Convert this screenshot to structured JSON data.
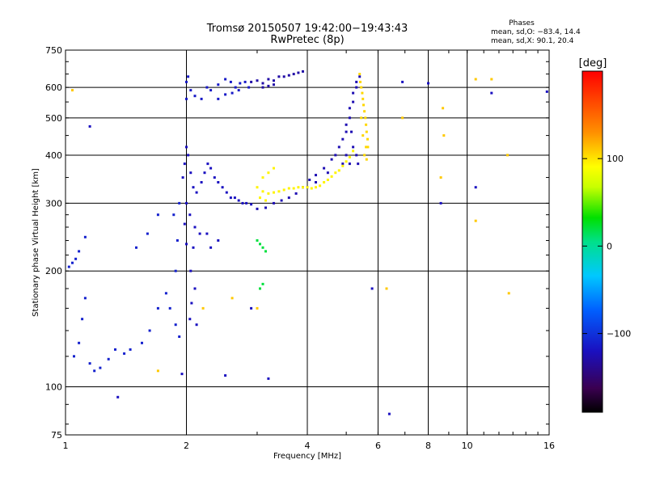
{
  "chart_data": {
    "type": "scatter",
    "title": "Tromsø 20150507 19:42:00−19:43:43",
    "subtitle": "RwPretec (8p)",
    "stats": {
      "heading": "Phases",
      "line1": "mean, sd,O:  −83.4, 14.4",
      "line2": "mean, sd,X:   90.1, 20.4"
    },
    "xlabel": "Frequency [MHz]",
    "ylabel": "Stationary phase Virtual Height [km]",
    "xscale": "log",
    "yscale": "log",
    "xlim": [
      1,
      16
    ],
    "ylim": [
      75,
      750
    ],
    "xticks": [
      1,
      2,
      4,
      6,
      8,
      10,
      16
    ],
    "xtick_labels": [
      "1",
      "2",
      "4",
      "6",
      "8",
      "10",
      "16"
    ],
    "yticks": [
      75,
      100,
      200,
      300,
      400,
      500,
      600,
      750
    ],
    "ytick_labels": [
      "75",
      "100",
      "200",
      "300",
      "400",
      "500",
      "600",
      "750"
    ],
    "grid": true,
    "colorbar": {
      "label": "[deg]",
      "range": [
        -190,
        200
      ],
      "ticks": [
        100,
        0,
        -100
      ],
      "tick_labels": [
        "100",
        "0",
        "−100"
      ]
    },
    "series": [
      {
        "color_value": -110,
        "points": [
          [
            1.02,
            205
          ],
          [
            1.04,
            210
          ],
          [
            1.06,
            215
          ],
          [
            1.08,
            225
          ],
          [
            1.12,
            245
          ],
          [
            1.05,
            120
          ],
          [
            1.08,
            130
          ],
          [
            1.1,
            150
          ],
          [
            1.12,
            170
          ],
          [
            1.15,
            115
          ],
          [
            1.18,
            110
          ],
          [
            1.22,
            112
          ],
          [
            1.28,
            118
          ],
          [
            1.33,
            125
          ],
          [
            1.4,
            122
          ],
          [
            1.45,
            125
          ],
          [
            1.55,
            130
          ],
          [
            1.62,
            140
          ],
          [
            1.7,
            160
          ],
          [
            1.78,
            175
          ],
          [
            1.82,
            160
          ],
          [
            1.88,
            145
          ],
          [
            1.92,
            135
          ],
          [
            1.88,
            200
          ],
          [
            1.9,
            240
          ],
          [
            1.86,
            280
          ],
          [
            1.92,
            300
          ],
          [
            1.7,
            280
          ],
          [
            1.6,
            250
          ],
          [
            1.5,
            230
          ]
        ]
      },
      {
        "color_value": -120,
        "points": [
          [
            1.96,
            350
          ],
          [
            1.98,
            380
          ],
          [
            2.0,
            420
          ],
          [
            2.02,
            400
          ],
          [
            2.05,
            360
          ],
          [
            2.08,
            330
          ],
          [
            2.12,
            320
          ],
          [
            2.18,
            340
          ],
          [
            2.22,
            360
          ],
          [
            2.26,
            380
          ],
          [
            2.3,
            370
          ],
          [
            2.35,
            350
          ],
          [
            2.4,
            340
          ],
          [
            2.46,
            330
          ],
          [
            2.52,
            320
          ],
          [
            2.58,
            310
          ],
          [
            2.64,
            310
          ],
          [
            2.7,
            305
          ],
          [
            2.76,
            300
          ],
          [
            2.82,
            300
          ],
          [
            2.9,
            298
          ],
          [
            2.0,
            300
          ],
          [
            2.04,
            280
          ],
          [
            2.1,
            260
          ],
          [
            2.16,
            250
          ],
          [
            2.08,
            230
          ],
          [
            2.05,
            200
          ],
          [
            2.1,
            180
          ],
          [
            2.06,
            165
          ],
          [
            2.04,
            150
          ],
          [
            2.12,
            145
          ],
          [
            2.0,
            235
          ],
          [
            1.98,
            265
          ],
          [
            2.25,
            250
          ],
          [
            2.3,
            230
          ],
          [
            2.4,
            240
          ]
        ]
      },
      {
        "color_value": -115,
        "points": [
          [
            2.0,
            560
          ],
          [
            2.0,
            620
          ],
          [
            2.02,
            640
          ],
          [
            2.05,
            590
          ],
          [
            2.1,
            570
          ],
          [
            2.18,
            560
          ],
          [
            2.25,
            600
          ],
          [
            2.3,
            590
          ],
          [
            2.4,
            610
          ],
          [
            2.5,
            630
          ],
          [
            2.58,
            620
          ],
          [
            2.65,
            600
          ],
          [
            2.72,
            615
          ],
          [
            2.8,
            620
          ],
          [
            2.86,
            600
          ],
          [
            2.4,
            560
          ],
          [
            2.5,
            575
          ],
          [
            2.6,
            580
          ],
          [
            2.7,
            590
          ]
        ]
      },
      {
        "color_value": -130,
        "points": [
          [
            2.9,
            620
          ],
          [
            3.0,
            625
          ],
          [
            3.1,
            615
          ],
          [
            3.2,
            630
          ],
          [
            3.3,
            625
          ],
          [
            3.4,
            640
          ],
          [
            3.5,
            640
          ],
          [
            3.6,
            645
          ],
          [
            3.7,
            650
          ],
          [
            3.8,
            655
          ],
          [
            3.9,
            660
          ],
          [
            3.1,
            600
          ],
          [
            3.2,
            605
          ],
          [
            3.3,
            610
          ]
        ]
      },
      {
        "color_value": -125,
        "points": [
          [
            3.0,
            290
          ],
          [
            3.15,
            292
          ],
          [
            3.3,
            300
          ],
          [
            3.45,
            305
          ],
          [
            3.6,
            310
          ],
          [
            3.75,
            318
          ],
          [
            3.9,
            330
          ],
          [
            4.05,
            345
          ],
          [
            4.2,
            355
          ],
          [
            4.4,
            370
          ],
          [
            4.6,
            390
          ],
          [
            4.8,
            420
          ],
          [
            5.0,
            460
          ],
          [
            5.1,
            500
          ],
          [
            5.2,
            550
          ],
          [
            5.3,
            600
          ],
          [
            5.4,
            640
          ],
          [
            4.0,
            330
          ],
          [
            4.2,
            340
          ],
          [
            4.5,
            360
          ],
          [
            4.7,
            400
          ],
          [
            4.9,
            440
          ],
          [
            5.0,
            480
          ],
          [
            5.1,
            530
          ],
          [
            5.2,
            580
          ],
          [
            5.3,
            620
          ],
          [
            4.9,
            380
          ],
          [
            5.0,
            400
          ],
          [
            5.1,
            380
          ],
          [
            5.2,
            420
          ],
          [
            5.15,
            460
          ],
          [
            5.3,
            400
          ],
          [
            5.35,
            380
          ]
        ]
      },
      {
        "color_value": 95,
        "points": [
          [
            3.0,
            330
          ],
          [
            3.1,
            322
          ],
          [
            3.2,
            318
          ],
          [
            3.3,
            320
          ],
          [
            3.4,
            322
          ],
          [
            3.5,
            325
          ],
          [
            3.6,
            328
          ],
          [
            3.7,
            328
          ],
          [
            3.8,
            330
          ],
          [
            3.9,
            330
          ],
          [
            4.0,
            330
          ],
          [
            4.1,
            328
          ],
          [
            4.2,
            330
          ],
          [
            4.3,
            333
          ],
          [
            4.4,
            340
          ],
          [
            4.5,
            345
          ],
          [
            4.6,
            352
          ],
          [
            4.7,
            360
          ],
          [
            4.8,
            365
          ],
          [
            4.9,
            375
          ],
          [
            5.0,
            385
          ],
          [
            5.1,
            395
          ],
          [
            5.2,
            410
          ],
          [
            3.1,
            350
          ],
          [
            3.2,
            360
          ],
          [
            3.3,
            370
          ],
          [
            3.05,
            310
          ],
          [
            3.15,
            305
          ]
        ]
      },
      {
        "color_value": 105,
        "points": [
          [
            5.4,
            650
          ],
          [
            5.42,
            620
          ],
          [
            5.45,
            600
          ],
          [
            5.48,
            580
          ],
          [
            5.5,
            560
          ],
          [
            5.52,
            540
          ],
          [
            5.55,
            520
          ],
          [
            5.58,
            500
          ],
          [
            5.6,
            480
          ],
          [
            5.62,
            460
          ],
          [
            5.65,
            440
          ],
          [
            5.6,
            420
          ],
          [
            5.55,
            400
          ],
          [
            5.62,
            390
          ],
          [
            5.66,
            420
          ],
          [
            5.45,
            500
          ],
          [
            5.5,
            450
          ]
        ]
      },
      {
        "color_value": 20,
        "points": [
          [
            3.0,
            240
          ],
          [
            3.05,
            235
          ],
          [
            3.1,
            230
          ],
          [
            3.15,
            225
          ],
          [
            3.1,
            185
          ],
          [
            3.05,
            180
          ]
        ]
      },
      {
        "color_value": -120,
        "points": [
          [
            5.8,
            180
          ],
          [
            6.4,
            85
          ],
          [
            6.9,
            620
          ],
          [
            8.0,
            615
          ],
          [
            8.6,
            300
          ],
          [
            10.5,
            330
          ],
          [
            11.5,
            580
          ],
          [
            15.8,
            585
          ],
          [
            1.15,
            475
          ],
          [
            1.35,
            94
          ],
          [
            2.9,
            160
          ],
          [
            3.2,
            105
          ],
          [
            1.95,
            108
          ],
          [
            2.5,
            107
          ]
        ]
      },
      {
        "color_value": 110,
        "points": [
          [
            1.04,
            590
          ],
          [
            1.7,
            110
          ],
          [
            2.2,
            160
          ],
          [
            2.6,
            170
          ],
          [
            3.0,
            160
          ],
          [
            6.3,
            180
          ],
          [
            6.9,
            500
          ],
          [
            8.6,
            350
          ],
          [
            8.7,
            530
          ],
          [
            8.75,
            450
          ],
          [
            10.5,
            270
          ],
          [
            12.6,
            400
          ],
          [
            12.7,
            175
          ],
          [
            11.5,
            630
          ],
          [
            10.5,
            630
          ]
        ]
      }
    ]
  }
}
